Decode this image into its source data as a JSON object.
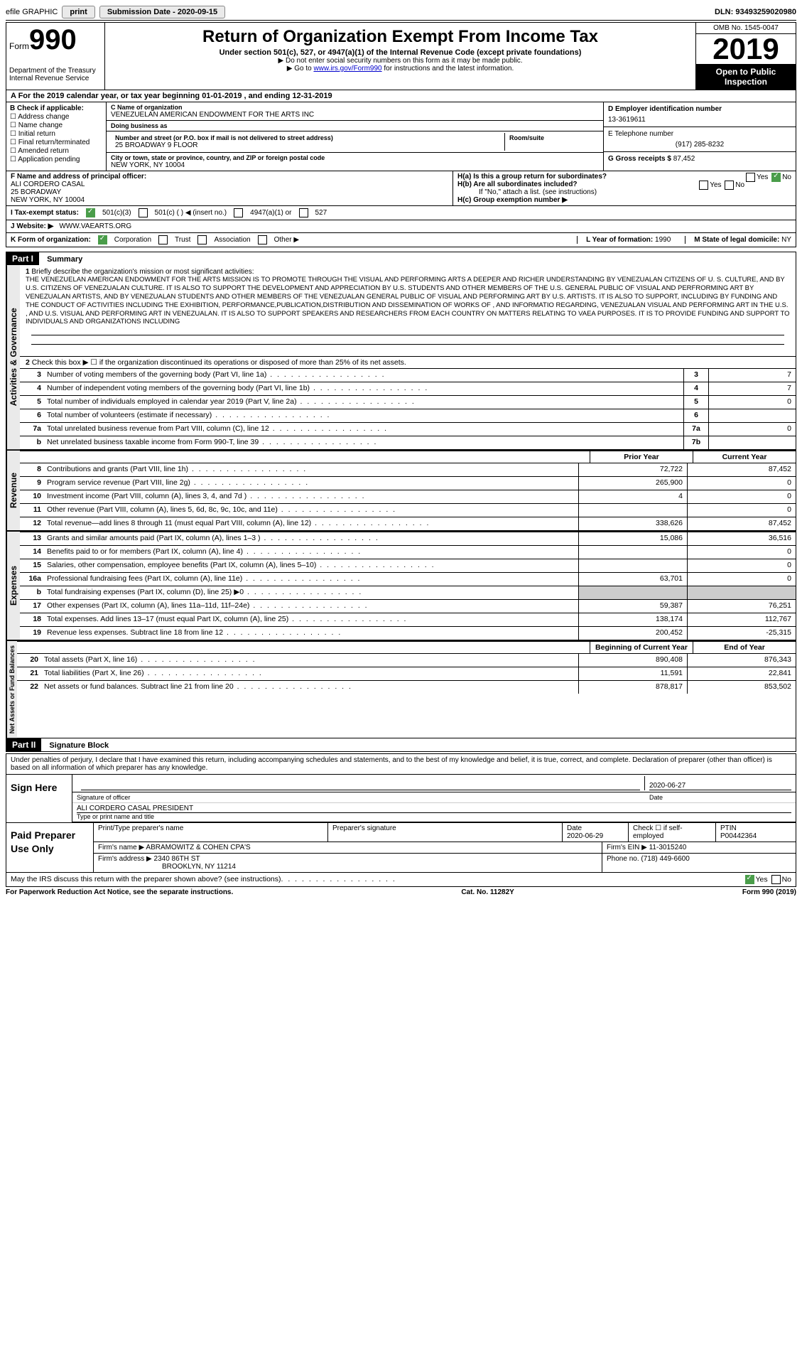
{
  "topbar": {
    "efile": "efile GRAPHIC",
    "print": "print",
    "sub_label": "Submission Date - ",
    "sub_date": "2020-09-15",
    "dln_label": "DLN: ",
    "dln": "93493259020980"
  },
  "header": {
    "form_label": "Form",
    "form_num": "990",
    "dept": "Department of the Treasury\nInternal Revenue Service",
    "title": "Return of Organization Exempt From Income Tax",
    "subtitle": "Under section 501(c), 527, or 4947(a)(1) of the Internal Revenue Code (except private foundations)",
    "note1": "▶ Do not enter social security numbers on this form as it may be made public.",
    "note2_pre": "▶ Go to ",
    "note2_link": "www.irs.gov/Form990",
    "note2_post": " for instructions and the latest information.",
    "omb": "OMB No. 1545-0047",
    "year": "2019",
    "open": "Open to Public Inspection"
  },
  "a_line": "A For the 2019 calendar year, or tax year beginning 01-01-2019   , and ending 12-31-2019",
  "b": {
    "title": "B Check if applicable:",
    "items": [
      "Address change",
      "Name change",
      "Initial return",
      "Final return/terminated",
      "Amended return",
      "Application pending"
    ]
  },
  "c": {
    "name_label": "C Name of organization",
    "name": "VENEZUELAN AMERICAN ENDOWMENT FOR THE ARTS INC",
    "dba_label": "Doing business as",
    "dba": "",
    "addr_label": "Number and street (or P.O. box if mail is not delivered to street address)",
    "room_label": "Room/suite",
    "addr": "25 BROADWAY 9 FLOOR",
    "city_label": "City or town, state or province, country, and ZIP or foreign postal code",
    "city": "NEW YORK, NY  10004"
  },
  "d": {
    "ein_label": "D Employer identification number",
    "ein": "13-3619611",
    "tel_label": "E Telephone number",
    "tel": "(917) 285-8232",
    "gross_label": "G Gross receipts $ ",
    "gross": "87,452"
  },
  "f": {
    "label": "F  Name and address of principal officer:",
    "name": "ALI CORDERO CASAL",
    "addr1": "25 BORADWAY",
    "addr2": "NEW YORK, NY  10004"
  },
  "h": {
    "a_label": "H(a)  Is this a group return for subordinates?",
    "a_yes": "Yes",
    "a_no": "No",
    "b_label": "H(b)  Are all subordinates included?",
    "b_yes": "Yes",
    "b_no": "No",
    "b_note": "If \"No,\" attach a list. (see instructions)",
    "c_label": "H(c)  Group exemption number ▶"
  },
  "i": {
    "label": "I  Tax-exempt status:",
    "o1": "501(c)(3)",
    "o2": "501(c) (  ) ◀ (insert no.)",
    "o3": "4947(a)(1) or",
    "o4": "527"
  },
  "j": {
    "label": "J  Website: ▶",
    "val": "WWW.VAEARTS.ORG"
  },
  "k": {
    "label": "K Form of organization:",
    "o1": "Corporation",
    "o2": "Trust",
    "o3": "Association",
    "o4": "Other ▶",
    "l_label": "L Year of formation: ",
    "l_val": "1990",
    "m_label": "M State of legal domicile: ",
    "m_val": "NY"
  },
  "part1": {
    "tag": "Part I",
    "title": "Summary",
    "tab_ag": "Activities & Governance",
    "tab_rev": "Revenue",
    "tab_exp": "Expenses",
    "tab_net": "Net Assets or Fund Balances",
    "l1_label": "Briefly describe the organization's mission or most significant activities:",
    "mission": "THE VENEZUELAN AMERICAN ENDOWMENT FOR THE ARTS MISSION IS TO PROMOTE THROUGH THE VISUAL AND PERFORMING ARTS A DEEPER AND RICHER UNDERSTANDING BY VENEZUALAN CITIZENS OF U. S. CULTURE, AND BY U.S. CITIZENS OF VENEZUALAN CULTURE. IT IS ALSO TO SUPPORT THE DEVELOPMENT AND APPRECIATION BY U.S. STUDENTS AND OTHER MEMBERS OF THE U.S. GENERAL PUBLIC OF VISUAL AND PERFRORMING ART BY VENEZUALAN ARTISTS, AND BY VENEZUALAN STUDENTS AND OTHER MEMBERS OF THE VENEZUALAN GENERAL PUBLIC OF VISUAL AND PERFORMING ART BY U.S. ARTISTS. IT IS ALSO TO SUPPORT, INCLUDING BY FUNDING AND THE CONDUCT OF ACTIVITIES INCLUDING THE EXHIBITION, PERFORMANCE,PUBLICATION,DISTRIBUTION AND DISSEMINATION OF WORKS OF , AND INFORMATIO REGARDING, VENEZUALAN VISUAL AND PERFORMING ART IN THE U.S. , AND U.S. VISUAL AND PERFORMING ART IN VENEZUALAN. IT IS ALSO TO SUPPORT SPEAKERS AND RESEARCHERS FROM EACH COUNTRY ON MATTERS RELATING TO VAEA PURPOSES. IT IS TO PROVIDE FUNDING AND SUPPORT TO INDIVIDUALS AND ORGANIZATIONS INCLUDING",
    "l2": "Check this box ▶ ☐  if the organization discontinued its operations or disposed of more than 25% of its net assets.",
    "lines_ag": [
      {
        "n": "3",
        "label": "Number of voting members of the governing body (Part VI, line 1a)",
        "box": "3",
        "v": "7"
      },
      {
        "n": "4",
        "label": "Number of independent voting members of the governing body (Part VI, line 1b)",
        "box": "4",
        "v": "7"
      },
      {
        "n": "5",
        "label": "Total number of individuals employed in calendar year 2019 (Part V, line 2a)",
        "box": "5",
        "v": "0"
      },
      {
        "n": "6",
        "label": "Total number of volunteers (estimate if necessary)",
        "box": "6",
        "v": ""
      },
      {
        "n": "7a",
        "label": "Total unrelated business revenue from Part VIII, column (C), line 12",
        "box": "7a",
        "v": "0"
      },
      {
        "n": "b",
        "label": "Net unrelated business taxable income from Form 990-T, line 39",
        "box": "7b",
        "v": ""
      }
    ],
    "col_prior": "Prior Year",
    "col_current": "Current Year",
    "rev": [
      {
        "n": "8",
        "label": "Contributions and grants (Part VIII, line 1h)",
        "p": "72,722",
        "c": "87,452"
      },
      {
        "n": "9",
        "label": "Program service revenue (Part VIII, line 2g)",
        "p": "265,900",
        "c": "0"
      },
      {
        "n": "10",
        "label": "Investment income (Part VIII, column (A), lines 3, 4, and 7d )",
        "p": "4",
        "c": "0"
      },
      {
        "n": "11",
        "label": "Other revenue (Part VIII, column (A), lines 5, 6d, 8c, 9c, 10c, and 11e)",
        "p": "",
        "c": "0"
      },
      {
        "n": "12",
        "label": "Total revenue—add lines 8 through 11 (must equal Part VIII, column (A), line 12)",
        "p": "338,626",
        "c": "87,452"
      }
    ],
    "exp": [
      {
        "n": "13",
        "label": "Grants and similar amounts paid (Part IX, column (A), lines 1–3 )",
        "p": "15,086",
        "c": "36,516"
      },
      {
        "n": "14",
        "label": "Benefits paid to or for members (Part IX, column (A), line 4)",
        "p": "",
        "c": "0"
      },
      {
        "n": "15",
        "label": "Salaries, other compensation, employee benefits (Part IX, column (A), lines 5–10)",
        "p": "",
        "c": "0"
      },
      {
        "n": "16a",
        "label": "Professional fundraising fees (Part IX, column (A), line 11e)",
        "p": "63,701",
        "c": "0"
      },
      {
        "n": "b",
        "label": "Total fundraising expenses (Part IX, column (D), line 25) ▶0",
        "p": "shade",
        "c": "shade"
      },
      {
        "n": "17",
        "label": "Other expenses (Part IX, column (A), lines 11a–11d, 11f–24e)",
        "p": "59,387",
        "c": "76,251"
      },
      {
        "n": "18",
        "label": "Total expenses. Add lines 13–17 (must equal Part IX, column (A), line 25)",
        "p": "138,174",
        "c": "112,767"
      },
      {
        "n": "19",
        "label": "Revenue less expenses. Subtract line 18 from line 12",
        "p": "200,452",
        "c": "-25,315"
      }
    ],
    "col_begin": "Beginning of Current Year",
    "col_end": "End of Year",
    "net": [
      {
        "n": "20",
        "label": "Total assets (Part X, line 16)",
        "p": "890,408",
        "c": "876,343"
      },
      {
        "n": "21",
        "label": "Total liabilities (Part X, line 26)",
        "p": "11,591",
        "c": "22,841"
      },
      {
        "n": "22",
        "label": "Net assets or fund balances. Subtract line 21 from line 20",
        "p": "878,817",
        "c": "853,502"
      }
    ]
  },
  "part2": {
    "tag": "Part II",
    "title": "Signature Block",
    "penalty": "Under penalties of perjury, I declare that I have examined this return, including accompanying schedules and statements, and to the best of my knowledge and belief, it is true, correct, and complete. Declaration of preparer (other than officer) is based on all information of which preparer has any knowledge.",
    "sign_here": "Sign Here",
    "sig_officer": "Signature of officer",
    "sig_date": "Date",
    "sig_date_val": "2020-06-27",
    "officer_name": "ALI CORDERO CASAL  PRESIDENT",
    "officer_type": "Type or print name and title",
    "paid": "Paid Preparer Use Only",
    "prep_name_h": "Print/Type preparer's name",
    "prep_sig_h": "Preparer's signature",
    "prep_date_h": "Date",
    "prep_date": "2020-06-29",
    "prep_self": "Check ☐ if self-employed",
    "ptin_h": "PTIN",
    "ptin": "P00442364",
    "firm_name_l": "Firm's name    ▶",
    "firm_name": "ABRAMOWITZ & COHEN CPA'S",
    "firm_ein_l": "Firm's EIN ▶",
    "firm_ein": "11-3015240",
    "firm_addr_l": "Firm's address ▶",
    "firm_addr": "2340 86TH ST",
    "firm_city": "BROOKLYN, NY  11214",
    "phone_l": "Phone no. ",
    "phone": "(718) 449-6600",
    "discuss": "May the IRS discuss this return with the preparer shown above? (see instructions)",
    "yes": "Yes",
    "no": "No"
  },
  "footer": {
    "pra": "For Paperwork Reduction Act Notice, see the separate instructions.",
    "cat": "Cat. No. 11282Y",
    "form": "Form 990 (2019)"
  }
}
